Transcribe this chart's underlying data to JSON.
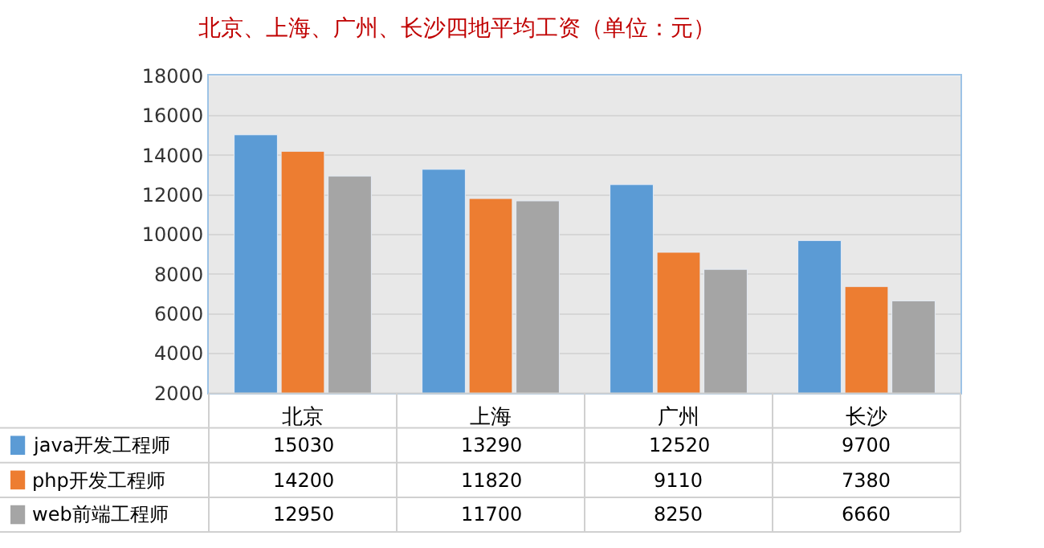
{
  "chart_data": {
    "type": "bar",
    "title": "北京、上海、广州、长沙四地平均工资（单位：元）",
    "categories": [
      "北京",
      "上海",
      "广州",
      "长沙"
    ],
    "series": [
      {
        "name": "java开发工程师",
        "color": "#5b9bd5",
        "values": [
          15030,
          13290,
          12520,
          9700
        ]
      },
      {
        "name": "php开发工程师",
        "color": "#ed7d31",
        "values": [
          14200,
          11820,
          9110,
          7380
        ]
      },
      {
        "name": "web前端工程师",
        "color": "#a5a5a5",
        "values": [
          12950,
          11700,
          8250,
          6660
        ]
      }
    ],
    "ylim": [
      2000,
      18000
    ],
    "yticks": [
      2000,
      4000,
      6000,
      8000,
      10000,
      12000,
      14000,
      16000,
      18000
    ],
    "grid": "y",
    "data_labels": true,
    "legend": "bottom left"
  }
}
